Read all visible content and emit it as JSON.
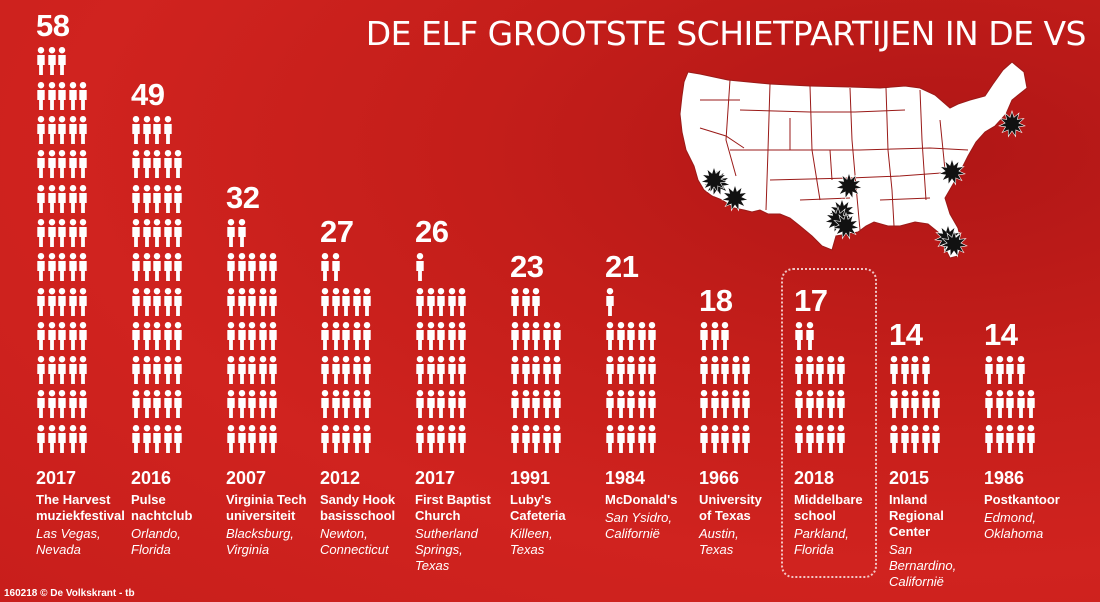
{
  "title": "DE ELF GROOTSTE SCHIETPARTIJEN IN DE VS",
  "credit": "160218 © De Volkskrant - tb",
  "chart_data": {
    "type": "bar",
    "title": "DE ELF GROOTSTE SCHIETPARTIJEN IN DE VS",
    "categories": [
      "2017 The Harvest muziekfestival",
      "2016 Pulse nachtclub",
      "2007 Virginia Tech universiteit",
      "2012 Sandy Hook basisschool",
      "2017 First Baptist Church",
      "1991 Luby's Cafeteria",
      "1984 McDonald's",
      "1966 University of Texas",
      "2018 Middelbare school",
      "2015 Inland Regional Center",
      "1986 Postkantoor"
    ],
    "values": [
      58,
      49,
      32,
      27,
      26,
      23,
      21,
      18,
      17,
      14,
      14
    ],
    "highlight_index": 8,
    "grid": false,
    "legend": "none"
  },
  "shootings": [
    {
      "count": "58",
      "year": "2017",
      "name": [
        "The Harvest",
        "muziekfestival"
      ],
      "place": [
        "Las Vegas,",
        "Nevada"
      ]
    },
    {
      "count": "49",
      "year": "2016",
      "name": [
        "Pulse",
        "nachtclub"
      ],
      "place": [
        "Orlando,",
        "Florida"
      ]
    },
    {
      "count": "32",
      "year": "2007",
      "name": [
        "Virginia Tech",
        "universiteit"
      ],
      "place": [
        "Blacksburg,",
        "Virginia"
      ]
    },
    {
      "count": "27",
      "year": "2012",
      "name": [
        "Sandy Hook",
        "basisschool"
      ],
      "place": [
        "Newton,",
        "Connecticut"
      ]
    },
    {
      "count": "26",
      "year": "2017",
      "name": [
        "First Baptist",
        "Church"
      ],
      "place": [
        "Sutherland",
        "Springs,",
        "Texas"
      ]
    },
    {
      "count": "23",
      "year": "1991",
      "name": [
        "Luby's",
        "Cafeteria"
      ],
      "place": [
        "Killeen,",
        "Texas"
      ]
    },
    {
      "count": "21",
      "year": "1984",
      "name": [
        "McDonald's"
      ],
      "place": [
        "San Ysidro,",
        "Californië"
      ]
    },
    {
      "count": "18",
      "year": "1966",
      "name": [
        "University",
        "of Texas"
      ],
      "place": [
        "Austin,",
        "Texas"
      ]
    },
    {
      "count": "17",
      "year": "2018",
      "name": [
        "Middelbare",
        "school"
      ],
      "place": [
        "Parkland,",
        "Florida"
      ]
    },
    {
      "count": "14",
      "year": "2015",
      "name": [
        "Inland",
        "Regional",
        "Center"
      ],
      "place": [
        "San",
        "Bernardino,",
        "Californië"
      ]
    },
    {
      "count": "14",
      "year": "1986",
      "name": [
        "Postkantoor"
      ],
      "place": [
        "Edmond,",
        "Oklahoma"
      ]
    }
  ],
  "map": {
    "land_color": "#ffffff",
    "border_color": "#9a1a18",
    "marker_color": "#111111",
    "marker_icon": "starburst-icon",
    "markers": [
      {
        "label": "Las Vegas, Nevada"
      },
      {
        "label": "San Ysidro, Californië"
      },
      {
        "label": "San Bernardino, Californië"
      },
      {
        "label": "Edmond, Oklahoma"
      },
      {
        "label": "Killeen, Texas"
      },
      {
        "label": "Austin, Texas"
      },
      {
        "label": "Sutherland Springs, Texas"
      },
      {
        "label": "Orlando, Florida"
      },
      {
        "label": "Parkland, Florida"
      },
      {
        "label": "Blacksburg, Virginia"
      },
      {
        "label": "Newton, Connecticut"
      }
    ]
  },
  "colors": {
    "background": "#c41e1a",
    "figure": "#ffffff",
    "text": "#ffffff"
  }
}
